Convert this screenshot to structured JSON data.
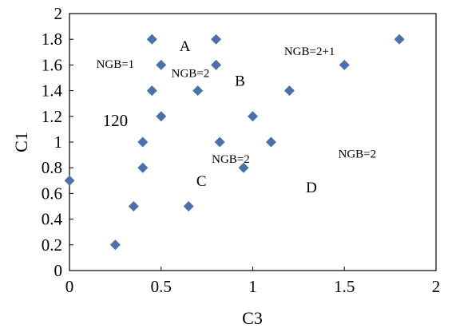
{
  "chart_data": {
    "type": "scatter",
    "xlabel": "C3",
    "ylabel": "C1",
    "xlim": [
      0,
      2
    ],
    "ylim": [
      0,
      2
    ],
    "x_ticks": [
      "0",
      "0.5",
      "1",
      "1.5",
      "2"
    ],
    "y_ticks": [
      "0",
      "0.2",
      "0.4",
      "0.6",
      "0.8",
      "1",
      "1.2",
      "1.4",
      "1.6",
      "1.8",
      "2"
    ],
    "grid": false,
    "marker": "diamond",
    "marker_color": "#4a72a8",
    "series": [
      {
        "x": [
          0,
          0.25,
          0.35,
          0.4,
          0.4,
          0.45,
          0.45,
          0.5,
          0.5,
          0.65,
          0.7,
          0.8,
          0.8,
          0.82,
          0.95,
          1.0,
          1.1,
          1.2,
          1.5,
          1.8
        ],
        "y": [
          0.7,
          0.2,
          0.5,
          0.8,
          1.0,
          1.4,
          1.8,
          1.6,
          1.2,
          0.5,
          1.4,
          1.6,
          1.8,
          1.0,
          0.8,
          1.2,
          1.0,
          1.4,
          1.6,
          1.8
        ]
      }
    ],
    "annotations": [
      {
        "text": "A",
        "x": 0.63,
        "y": 1.75,
        "size": "large"
      },
      {
        "text": "B",
        "x": 0.93,
        "y": 1.48,
        "size": "large"
      },
      {
        "text": "C",
        "x": 0.72,
        "y": 0.7,
        "size": "large"
      },
      {
        "text": "D",
        "x": 1.32,
        "y": 0.65,
        "size": "large"
      },
      {
        "text": "120",
        "x": 0.25,
        "y": 1.17,
        "size": "xlarge"
      },
      {
        "text": "NGB=1",
        "x": 0.25,
        "y": 1.61,
        "size": "small"
      },
      {
        "text": "NGB=2",
        "x": 0.66,
        "y": 1.54,
        "size": "small"
      },
      {
        "text": "NGB=2+1",
        "x": 1.31,
        "y": 1.71,
        "size": "small"
      },
      {
        "text": "NGB=2",
        "x": 0.88,
        "y": 0.87,
        "size": "small"
      },
      {
        "text": "NGB=2",
        "x": 1.57,
        "y": 0.91,
        "size": "small"
      }
    ]
  }
}
